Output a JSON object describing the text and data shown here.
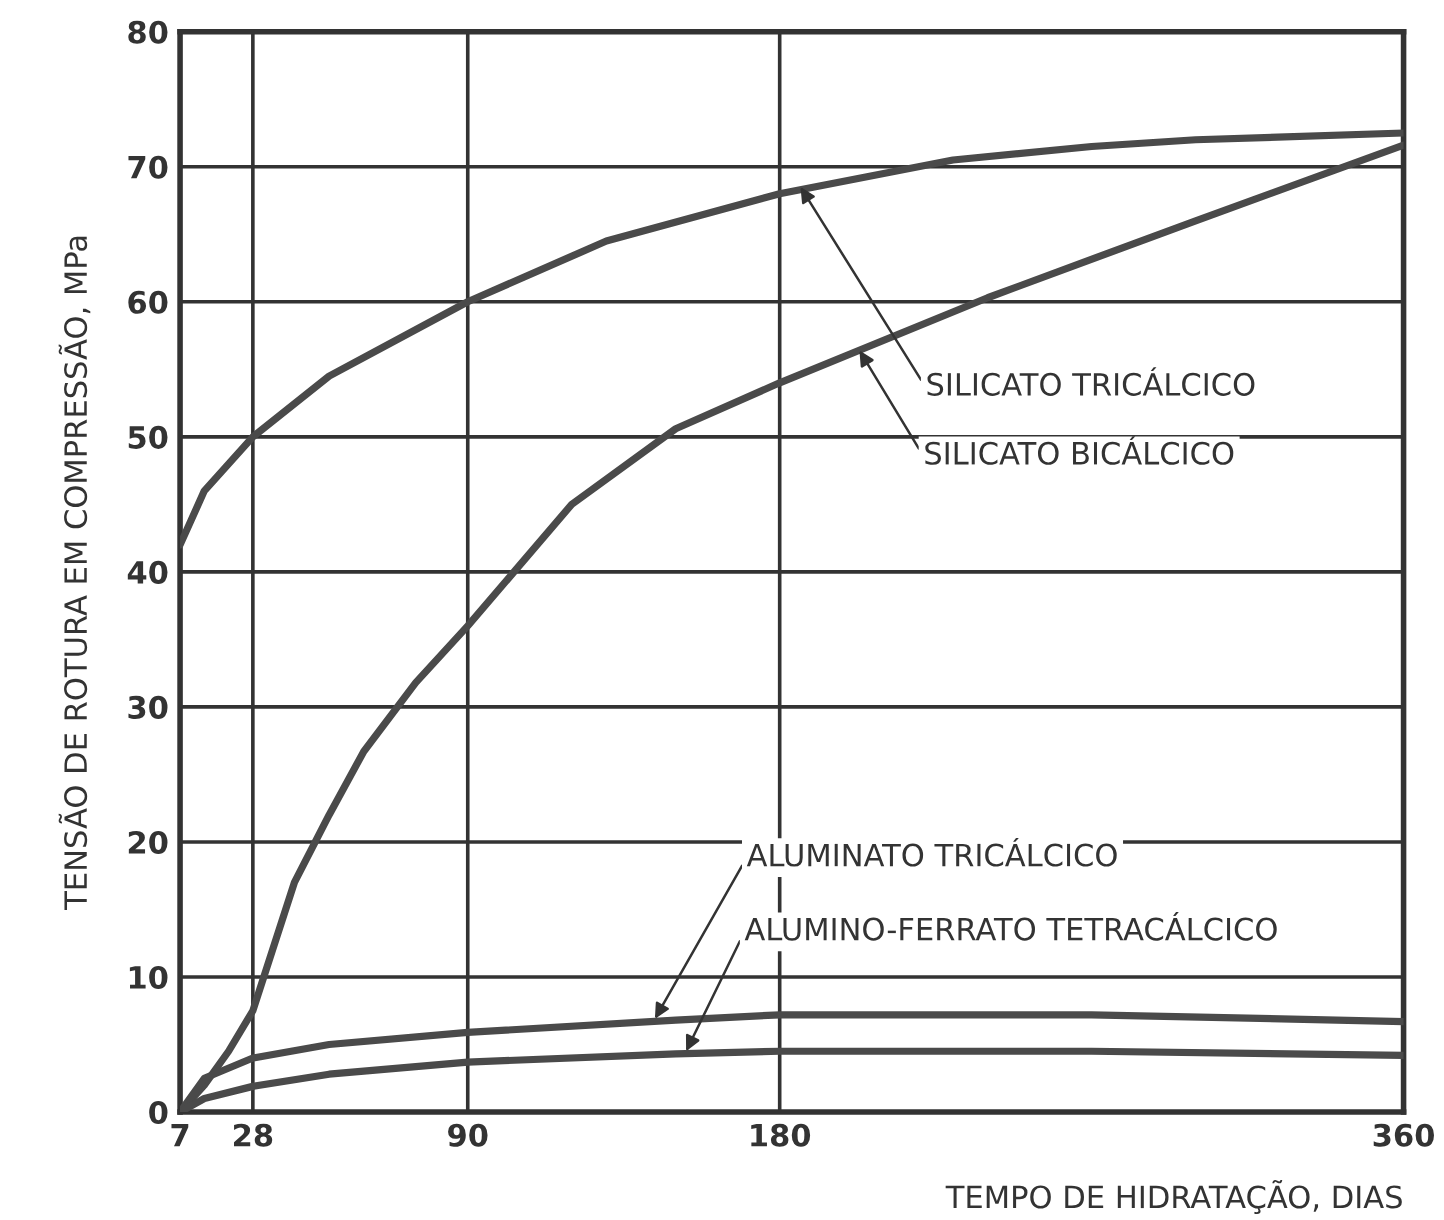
{
  "chart_data": {
    "type": "line",
    "xlabel": "TEMPO DE HIDRATAÇÃO, DIAS",
    "ylabel": "TENSÃO DE ROTURA EM COMPRESSÃO, MPa",
    "xlim": [
      7,
      360
    ],
    "xticks": [
      7,
      28,
      90,
      180,
      360
    ],
    "ylim": [
      0,
      80
    ],
    "yticks": [
      0,
      10,
      20,
      30,
      40,
      50,
      60,
      70,
      80
    ],
    "grid": true,
    "legend": false,
    "marker": "none",
    "line_style": "solid",
    "series": [
      {
        "color": "#4a4a4a",
        "x": [
          7,
          14,
          28,
          50,
          90,
          130,
          180,
          230,
          270,
          300,
          360
        ],
        "values": [
          42,
          46,
          50,
          54.5,
          60,
          64.5,
          68,
          70.5,
          71.5,
          72,
          72.5
        ]
      },
      {
        "color": "#4a4a4a",
        "x": [
          7,
          14,
          21,
          28,
          40,
          50,
          60,
          75,
          90,
          120,
          150,
          180,
          240,
          300,
          360
        ],
        "values": [
          0,
          2,
          4.5,
          7.5,
          17,
          22,
          26.7,
          31.8,
          36,
          45,
          50.6,
          54,
          60.3,
          66,
          71.6
        ]
      },
      {
        "color": "#4a4a4a",
        "x": [
          7,
          14,
          28,
          50,
          90,
          150,
          180,
          270,
          360
        ],
        "values": [
          0,
          2.5,
          4,
          5,
          5.9,
          6.8,
          7.2,
          7.2,
          6.7
        ]
      },
      {
        "color": "#4a4a4a",
        "x": [
          7,
          14,
          28,
          50,
          90,
          150,
          180,
          270,
          360
        ],
        "values": [
          0,
          1,
          1.9,
          2.8,
          3.7,
          4.3,
          4.5,
          4.5,
          4.2
        ]
      }
    ],
    "annotations": [
      {
        "text": "SILICATO TRICÁLCICO",
        "x": 186,
        "y": 68.5
      },
      {
        "text": "SILICATO BICÁLCICO",
        "x": 203,
        "y": 56.4
      },
      {
        "text": "ALUMINATO TRICÁLCICO",
        "x": 144,
        "y": 6.9
      },
      {
        "text": "ALUMINO-FERRATO TETRACÁLCICO",
        "x": 153,
        "y": 4.5
      }
    ]
  }
}
